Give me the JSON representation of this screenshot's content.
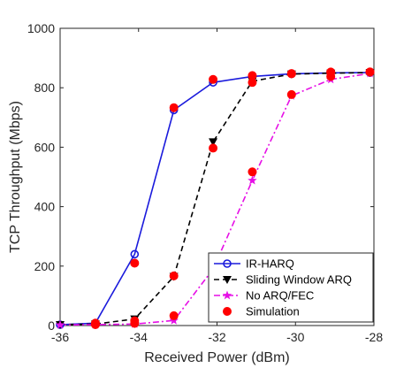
{
  "chart_data": {
    "type": "line",
    "title": "",
    "xlabel": "Received Power (dBm)",
    "ylabel": "TCP Throughput (Mbps)",
    "xlim": [
      -36,
      -28
    ],
    "ylim": [
      0,
      1000
    ],
    "xticks": [
      -36,
      -34,
      -32,
      -30,
      -28
    ],
    "yticks": [
      0,
      200,
      400,
      600,
      800,
      1000
    ],
    "grid": false,
    "legend_position": "bottom-right",
    "series": [
      {
        "name": "IR-HARQ",
        "color": "#1a1adc",
        "line": "solid",
        "marker": "circle-open",
        "x": [
          -36,
          -35.1,
          -34.1,
          -33.1,
          -32.1,
          -31.1,
          -30.1,
          -29.1,
          -28.1
        ],
        "y": [
          3,
          8,
          240,
          725,
          818,
          838,
          847,
          850,
          851
        ]
      },
      {
        "name": "Sliding Window ARQ",
        "color": "#000000",
        "line": "dashed",
        "marker": "triangle-down",
        "x": [
          -36,
          -35.1,
          -34.1,
          -33.1,
          -32.1,
          -31.1,
          -30.1,
          -29.1,
          -28.1
        ],
        "y": [
          3,
          5,
          22,
          165,
          618,
          822,
          846,
          849,
          851
        ]
      },
      {
        "name": "No ARQ/FEC",
        "color": "#e60fe6",
        "line": "dashdot",
        "marker": "star",
        "x": [
          -36,
          -35.1,
          -34.1,
          -33.1,
          -32.1,
          -31.1,
          -30.1,
          -29.1,
          -28.1
        ],
        "y": [
          2,
          3,
          5,
          17,
          190,
          488,
          773,
          828,
          848
        ]
      },
      {
        "name": "Simulation",
        "color": "#ff0000",
        "line": "none",
        "marker": "circle-filled",
        "x": [
          -35.1,
          -34.1,
          -33.1,
          -32.1,
          -31.1,
          -30.1,
          -29.1,
          -28.1,
          -35.1,
          -34.1,
          -33.1,
          -32.1,
          -31.1,
          -30.1,
          -29.1,
          -28.1,
          -35.1,
          -34.1,
          -33.1,
          -31.1,
          -30.1,
          -29.1,
          -28.1
        ],
        "y": [
          8,
          210,
          733,
          828,
          841,
          848,
          852,
          853,
          4,
          16,
          167,
          597,
          818,
          847,
          853,
          853,
          3,
          7,
          33,
          517,
          777,
          838,
          853
        ]
      }
    ]
  }
}
